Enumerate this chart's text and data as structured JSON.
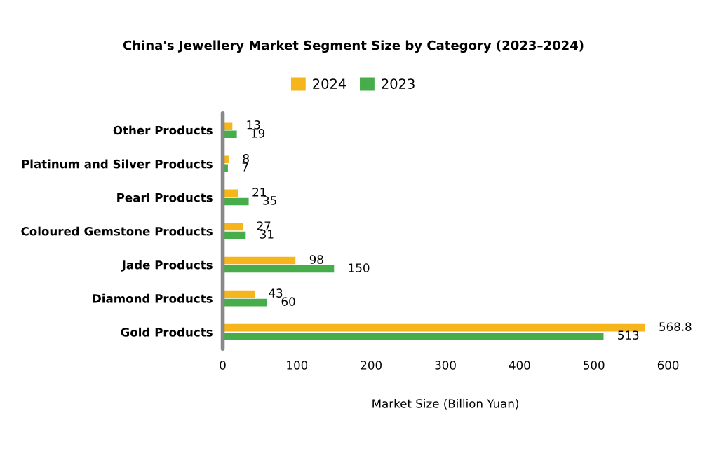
{
  "chart_data": {
    "type": "bar",
    "orientation": "horizontal",
    "title": "China's Jewellery Market Segment Size by Category (2023–2024)",
    "xlabel": "Market Size (Billion Yuan)",
    "categories": [
      "Other Products",
      "Platinum and Silver Products",
      "Pearl Products",
      "Coloured Gemstone Products",
      "Jade Products",
      "Diamond Products",
      "Gold Products"
    ],
    "series": [
      {
        "name": "2024",
        "color": "#f7b51c",
        "values": [
          13,
          8,
          21,
          27,
          98,
          43,
          568.8
        ]
      },
      {
        "name": "2023",
        "color": "#47ad4a",
        "values": [
          19,
          7,
          35,
          31,
          150,
          60,
          513
        ]
      }
    ],
    "xlim": [
      0,
      600
    ],
    "xticks": [
      0,
      100,
      200,
      300,
      400,
      500,
      600
    ],
    "grid": false,
    "legend": "top",
    "data_labels": true
  }
}
